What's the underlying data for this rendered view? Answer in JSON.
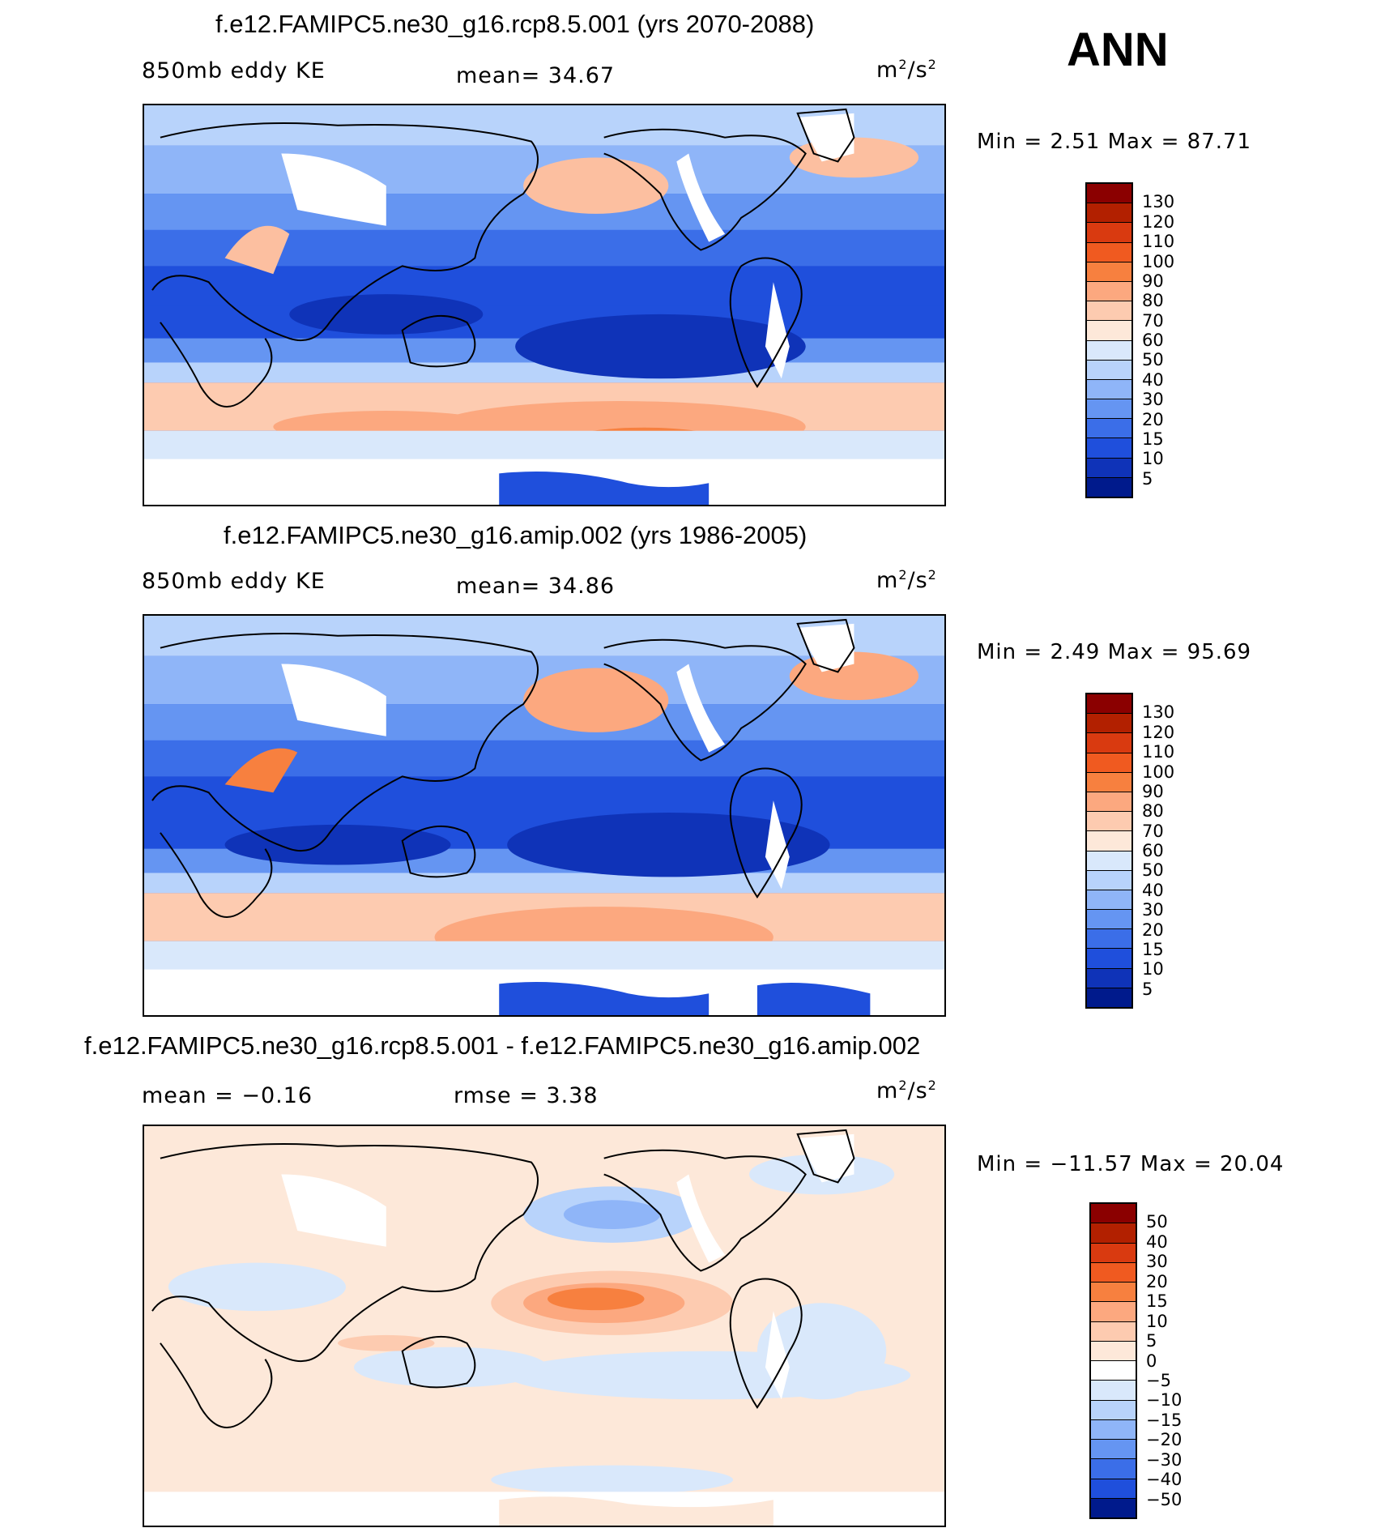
{
  "season": "ANN",
  "units_main": "m",
  "units_sup": "2",
  "units_rest": "/s",
  "panels": [
    {
      "title": "f.e12.FAMIPC5.ne30_g16.rcp8.5.001 (yrs 2070-2088)",
      "left_label": "850mb eddy KE",
      "stat": "mean=  34.67",
      "minmax": "Min =    2.51  Max =    87.71",
      "colorbar": "ke"
    },
    {
      "title": "f.e12.FAMIPC5.ne30_g16.amip.002 (yrs 1986-2005)",
      "left_label": "850mb eddy KE",
      "stat": "mean=  34.86",
      "minmax": "Min =    2.49  Max =    95.69",
      "colorbar": "ke"
    },
    {
      "title": "f.e12.FAMIPC5.ne30_g16.rcp8.5.001 - f.e12.FAMIPC5.ne30_g16.amip.002",
      "left_label": "mean =  −0.16",
      "stat": "rmse =    3.38",
      "minmax": "Min = −11.57  Max =   20.04",
      "colorbar": "diff"
    }
  ],
  "colorbars": {
    "ke": {
      "labels": [
        "130",
        "120",
        "110",
        "100",
        "90",
        "80",
        "70",
        "60",
        "50",
        "40",
        "30",
        "20",
        "15",
        "10",
        "5"
      ],
      "colors": [
        "#8b0000",
        "#b22000",
        "#d93a10",
        "#f05a20",
        "#f7803f",
        "#fca87f",
        "#fdcbb0",
        "#fde8d9",
        "#d9e8fb",
        "#b8d3fb",
        "#8fb5f8",
        "#6595f2",
        "#3b6ee8",
        "#1f4fdc",
        "#0f33b8",
        "#001a8c"
      ]
    },
    "diff": {
      "labels": [
        "50",
        "40",
        "30",
        "20",
        "15",
        "10",
        "5",
        "0",
        "−5",
        "−10",
        "−15",
        "−20",
        "−30",
        "−40",
        "−50"
      ],
      "colors": [
        "#8b0000",
        "#b22000",
        "#d93a10",
        "#f05a20",
        "#f7803f",
        "#fca87f",
        "#fdcbb0",
        "#fde8d9",
        "#ffffff",
        "#d9e8fb",
        "#b8d3fb",
        "#8fb5f8",
        "#6595f2",
        "#3b6ee8",
        "#1f4fdc",
        "#001a8c"
      ]
    }
  }
}
